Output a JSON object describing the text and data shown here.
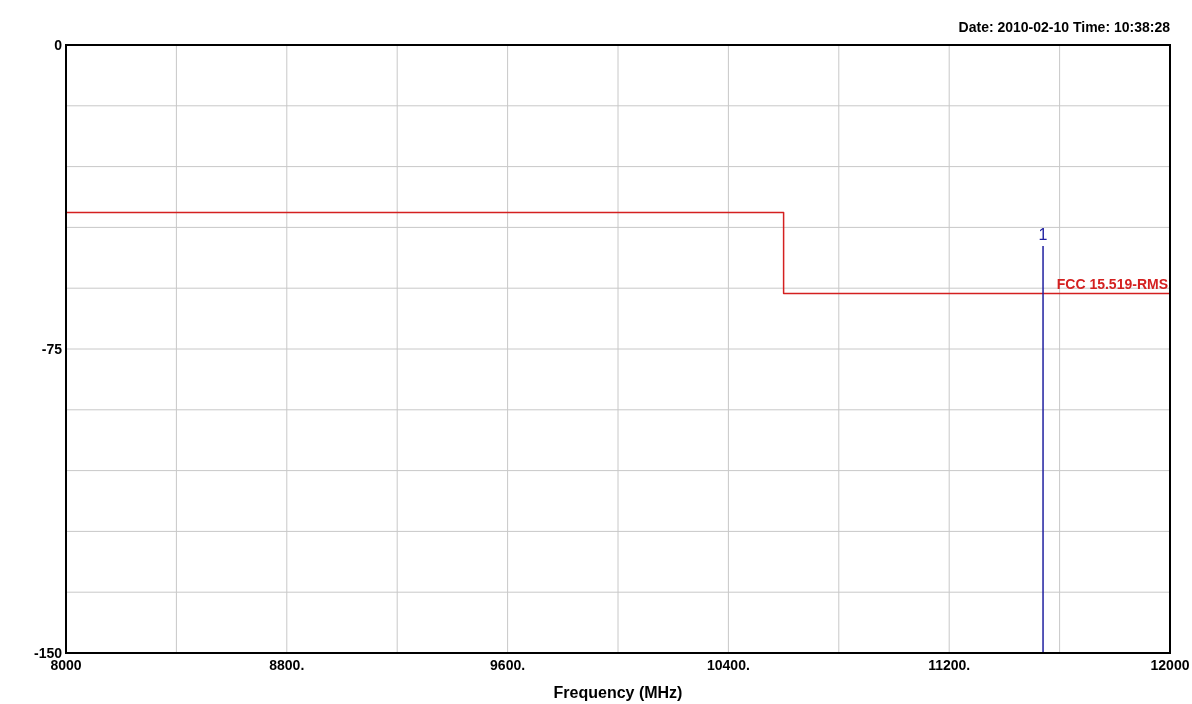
{
  "chart_data": {
    "type": "line",
    "subtitle": "Date: 2010-02-10  Time: 10:38:28",
    "xlabel": "Frequency (MHz)",
    "xlim": [
      8000,
      12000
    ],
    "xticks": [
      8000,
      {
        "value": 8400,
        "label": null
      },
      {
        "value": 8800,
        "label": "8800."
      },
      {
        "value": 9200,
        "label": null
      },
      {
        "value": 9600,
        "label": "9600."
      },
      {
        "value": 10000,
        "label": null
      },
      {
        "value": 10400,
        "label": "10400."
      },
      {
        "value": 10800,
        "label": null
      },
      {
        "value": 11200,
        "label": "11200."
      },
      {
        "value": 11600,
        "label": null
      },
      12000
    ],
    "ylim": [
      -150,
      0
    ],
    "yticks": [
      -150,
      {
        "value": -135,
        "label": null
      },
      {
        "value": -120,
        "label": null
      },
      {
        "value": -105,
        "label": null
      },
      {
        "value": -90,
        "label": null
      },
      -75,
      {
        "value": -60,
        "label": null
      },
      {
        "value": -45,
        "label": null
      },
      {
        "value": -30,
        "label": null
      },
      {
        "value": -15,
        "label": null
      },
      0
    ],
    "grid": true,
    "series": [
      {
        "name": "FCC 15.519-RMS",
        "color": "#d42020",
        "x": [
          8000,
          10600,
          10600,
          12000
        ],
        "values": [
          -41.3,
          -41.3,
          -61.3,
          -61.3
        ]
      },
      {
        "color": "#2020a0",
        "x": [
          11540,
          11540
        ],
        "values": [
          -150,
          -49.6
        ]
      }
    ],
    "annotations": [
      {
        "text": "1",
        "x": 11540,
        "y": -49.6
      }
    ]
  }
}
